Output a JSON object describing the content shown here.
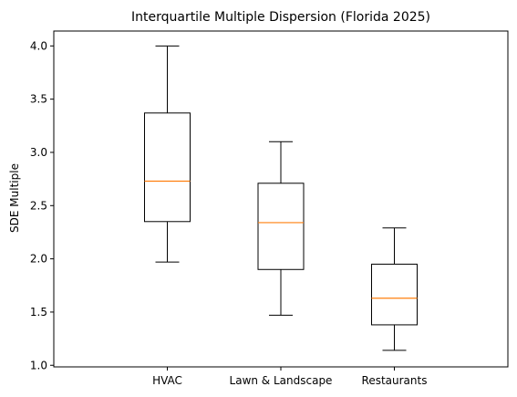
{
  "chart_data": {
    "type": "box",
    "title": "Interquartile Multiple Dispersion (Florida 2025)",
    "xlabel": "",
    "ylabel": "SDE Multiple",
    "ylim": [
      0.985,
      4.14
    ],
    "yticks": [
      1.0,
      1.5,
      2.0,
      2.5,
      3.0,
      3.5,
      4.0
    ],
    "ytick_labels": [
      "1.0",
      "1.5",
      "2.0",
      "2.5",
      "3.0",
      "3.5",
      "4.0"
    ],
    "categories": [
      "HVAC",
      "Lawn & Landscape",
      "Restaurants"
    ],
    "boxes": [
      {
        "category": "HVAC",
        "whisker_low": 1.97,
        "q1": 2.35,
        "median": 2.73,
        "q3": 3.37,
        "whisker_high": 4.0
      },
      {
        "category": "Lawn & Landscape",
        "whisker_low": 1.47,
        "q1": 1.9,
        "median": 2.34,
        "q3": 2.71,
        "whisker_high": 3.1
      },
      {
        "category": "Restaurants",
        "whisker_low": 1.14,
        "q1": 1.38,
        "median": 1.63,
        "q3": 1.95,
        "whisker_high": 2.29
      }
    ],
    "grid": false,
    "legend": "none",
    "colors": {
      "box": "#000000",
      "median": "#ff7f0e"
    }
  }
}
